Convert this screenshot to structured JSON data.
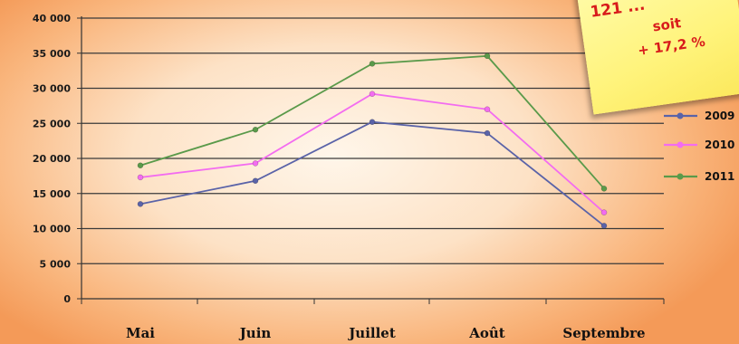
{
  "chart_data": {
    "type": "line",
    "categories": [
      "Mai",
      "Juin",
      "Juillet",
      "Août",
      "Septembre"
    ],
    "y_ticks": [
      "0",
      "5 000",
      "10 000",
      "15 000",
      "20 000",
      "25 000",
      "30 000",
      "35 000",
      "40 000"
    ],
    "ylim": [
      0,
      40000
    ],
    "grid": true,
    "legend_position": "right",
    "series": [
      {
        "name": "2009",
        "color": "#5a63a8",
        "values": [
          13500,
          16800,
          25200,
          23600,
          10400
        ]
      },
      {
        "name": "2010",
        "color": "#f36cf0",
        "values": [
          17300,
          19300,
          29200,
          27000,
          12300
        ]
      },
      {
        "name": "2011",
        "color": "#5a9a4a",
        "values": [
          19000,
          24100,
          33500,
          34600,
          15700
        ]
      }
    ]
  },
  "annotation": {
    "line1": "121 ...",
    "line2": "soit",
    "line3": "+ 17,2 %"
  }
}
